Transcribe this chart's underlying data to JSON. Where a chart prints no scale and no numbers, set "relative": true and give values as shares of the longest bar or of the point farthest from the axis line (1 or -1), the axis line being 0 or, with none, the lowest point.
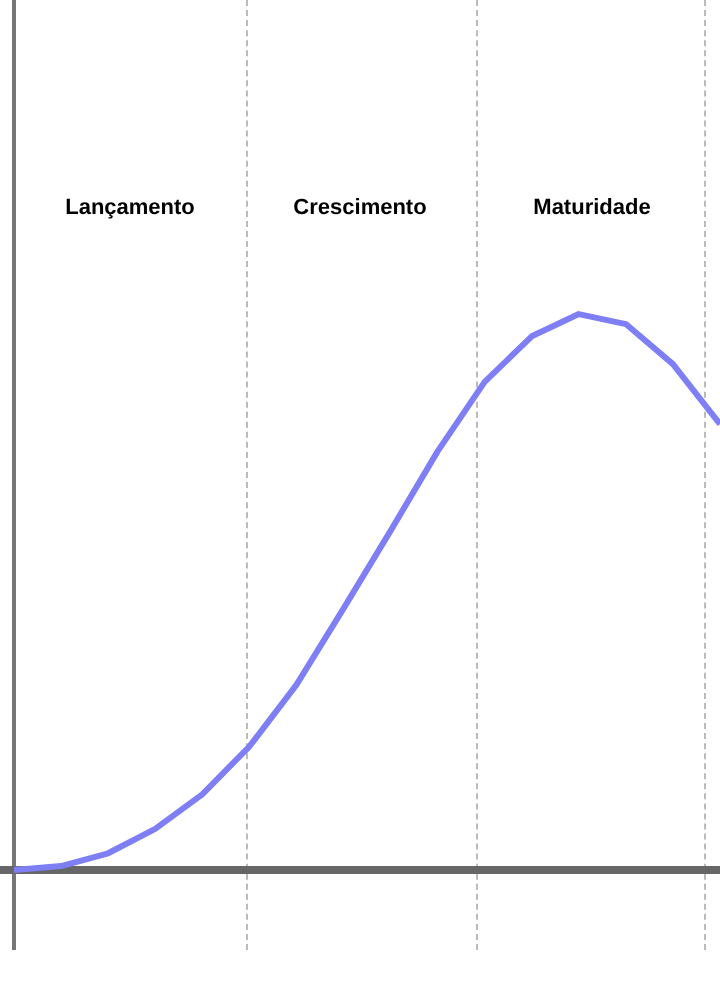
{
  "chart_data": {
    "type": "line",
    "relative": true,
    "grid": false,
    "legend": false,
    "marker": "none",
    "line_style": "solid",
    "categories": [
      null,
      null,
      null,
      null,
      null,
      null,
      null,
      null,
      null,
      null,
      null,
      null,
      null,
      null,
      null,
      null
    ],
    "series": [
      {
        "color": "#7f7ff5",
        "values": [
          0,
          0.007,
          0.03,
          0.074,
          0.136,
          0.222,
          0.333,
          0.47,
          0.61,
          0.753,
          0.878,
          0.96,
          1,
          0.982,
          0.91,
          0.802
        ]
      }
    ],
    "annotations": [
      "Lançamento",
      "Crescimento",
      "Maturidade"
    ]
  }
}
